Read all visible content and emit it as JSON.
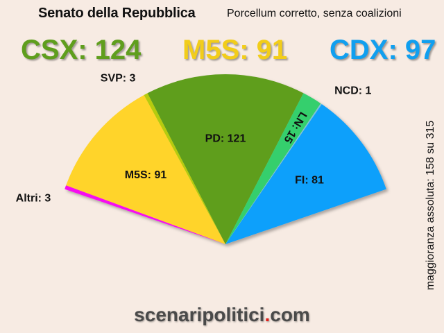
{
  "header": {
    "title": "Senato della Repubblica",
    "subtitle": "Porcellum corretto, senza coalizioni"
  },
  "totals": [
    {
      "label": "CSX: 124",
      "color": "#5f9e1d"
    },
    {
      "label": "M5S: 91",
      "color": "#f2cd1a"
    },
    {
      "label": "CDX: 97",
      "color": "#109fef"
    }
  ],
  "side_note": "maggioranza assoluta: 158 su 315",
  "brand": {
    "text_a": "scenaripolitici",
    "dot": ".",
    "text_b": "com"
  },
  "chart_data": {
    "type": "pie",
    "layout": "semicircle",
    "total_seats": 315,
    "slices": [
      {
        "name": "Altri",
        "label": "Altri: 3",
        "value": 3,
        "color": "#f60cf0"
      },
      {
        "name": "M5S",
        "label": "M5S: 91",
        "value": 91,
        "color": "#ffd42a"
      },
      {
        "name": "SVP",
        "label": "SVP: 3",
        "value": 3,
        "color": "#b6cc0e"
      },
      {
        "name": "PD",
        "label": "PD: 121",
        "value": 121,
        "color": "#5f9e1d"
      },
      {
        "name": "LN",
        "label": "LN: 15",
        "value": 15,
        "color": "#35cf6d"
      },
      {
        "name": "NCD",
        "label": "NCD: 1",
        "value": 1,
        "color": "#7fc3d8"
      },
      {
        "name": "FI",
        "label": "FI: 81",
        "value": 81,
        "color": "#0fa0fb"
      }
    ]
  }
}
